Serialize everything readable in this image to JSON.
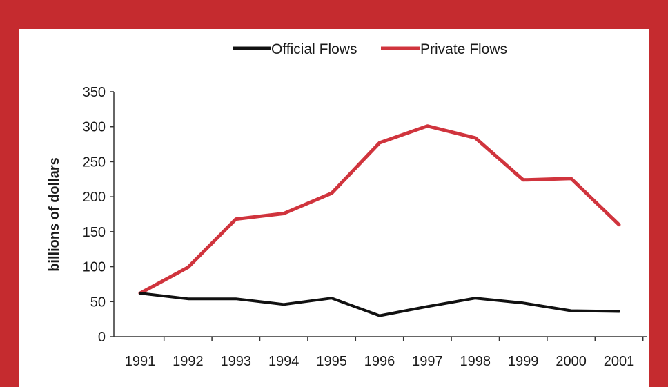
{
  "colors": {
    "frame": "#c52b2f",
    "official": "#111111",
    "private": "#d0343d"
  },
  "chart_data": {
    "type": "line",
    "title": "",
    "xlabel": "",
    "ylabel": "billions of dollars",
    "ylim": [
      0,
      350
    ],
    "yticks": [
      0,
      50,
      100,
      150,
      200,
      250,
      300,
      350
    ],
    "categories": [
      "1991",
      "1992",
      "1993",
      "1994",
      "1995",
      "1996",
      "1997",
      "1998",
      "1999",
      "2000",
      "2001"
    ],
    "legend_position": "top-center",
    "grid": false,
    "series": [
      {
        "name": "Official Flows",
        "values": [
          62,
          54,
          54,
          46,
          55,
          30,
          43,
          55,
          48,
          37,
          36
        ]
      },
      {
        "name": "Private Flows",
        "values": [
          62,
          99,
          168,
          176,
          205,
          277,
          301,
          284,
          224,
          226,
          160
        ]
      }
    ]
  }
}
